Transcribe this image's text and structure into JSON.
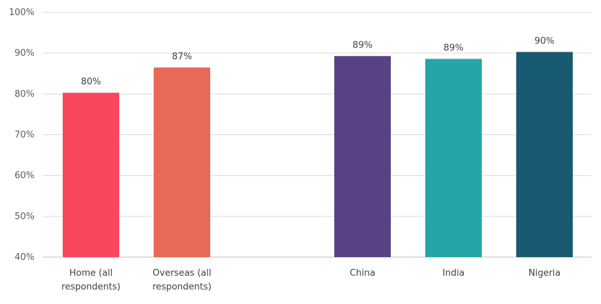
{
  "chart_data": {
    "type": "bar",
    "categories": [
      [
        "Home (all",
        "respondents)"
      ],
      [
        "Overseas (all",
        "respondents)"
      ],
      [
        "China"
      ],
      [
        "India"
      ],
      [
        "Nigeria"
      ]
    ],
    "values": [
      80.3,
      86.5,
      89.3,
      88.6,
      90.3
    ],
    "data_labels": [
      "80%",
      "87%",
      "89%",
      "89%",
      "90%"
    ],
    "colors": [
      "#f9475e",
      "#e66a57",
      "#594284",
      "#27a4aa",
      "#175a72"
    ],
    "ylim": [
      40,
      100
    ],
    "y_ticks": [
      "40%",
      "50%",
      "60%",
      "70%",
      "80%",
      "90%",
      "100%"
    ],
    "y_tick_values": [
      40,
      50,
      60,
      70,
      80,
      90,
      100
    ],
    "title": "",
    "xlabel": "",
    "ylabel": "",
    "grid": true,
    "legend": "none"
  }
}
